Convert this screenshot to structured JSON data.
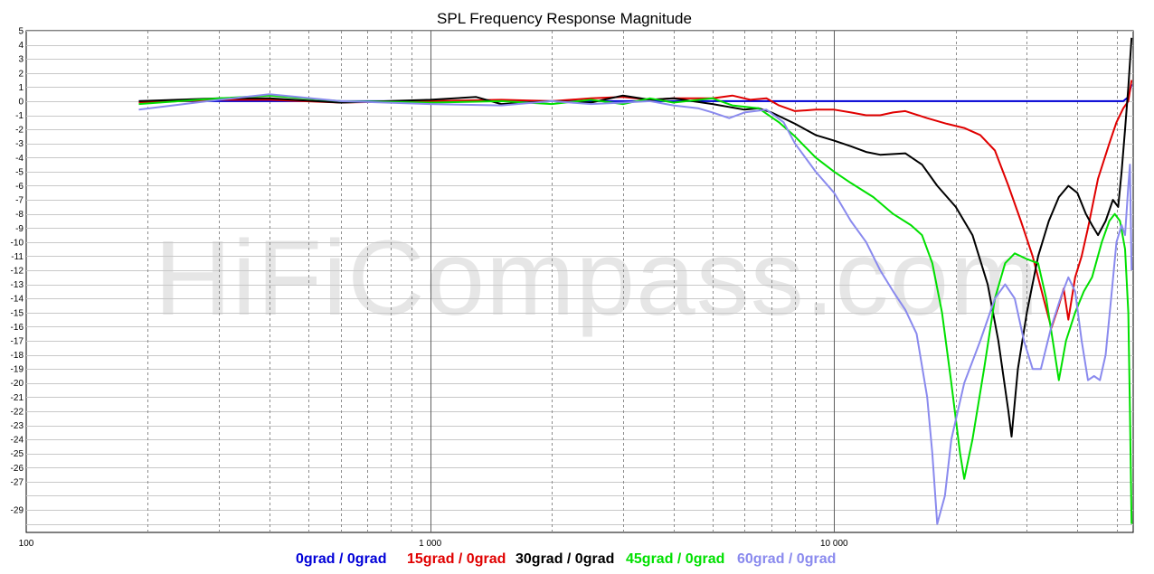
{
  "chart_data": {
    "type": "line",
    "title": "SPL Frequency Response Magnitude",
    "watermark": "HiFiCompass.com",
    "xscale": "log",
    "xlim": [
      100,
      55000
    ],
    "ylim": [
      -30.6,
      5
    ],
    "grid": true,
    "legend_position": "bottom",
    "x_tick_labels": [
      {
        "value": 100,
        "label": "100"
      },
      {
        "value": 1000,
        "label": "1 000"
      },
      {
        "value": 10000,
        "label": "10 000"
      }
    ],
    "y_tick_labels": [
      "5",
      "4",
      "3",
      "2",
      "1",
      "0",
      "-1",
      "-2",
      "-3",
      "-4",
      "-5",
      "-6",
      "-7",
      "-8",
      "-9",
      "-10",
      "-11",
      "-12",
      "-13",
      "-14",
      "-15",
      "-16",
      "-17",
      "-18",
      "-19",
      "-20",
      "-21",
      "-22",
      "-23",
      "-24",
      "-25",
      "-26",
      "-27",
      "-29"
    ],
    "series": [
      {
        "name": "0grad / 0grad",
        "color": "#0000d8",
        "points": [
          [
            190,
            0
          ],
          [
            7000,
            0
          ],
          [
            52000,
            0
          ],
          [
            53500,
            0.3
          ],
          [
            54500,
            1.2
          ]
        ]
      },
      {
        "name": "15grad / 0grad",
        "color": "#e00000",
        "points": [
          [
            190,
            -0.1
          ],
          [
            300,
            0.1
          ],
          [
            400,
            0.1
          ],
          [
            600,
            -0.1
          ],
          [
            1000,
            0.0
          ],
          [
            1500,
            0.1
          ],
          [
            2000,
            0.0
          ],
          [
            2500,
            0.2
          ],
          [
            3000,
            0.3
          ],
          [
            3500,
            0.1
          ],
          [
            4000,
            0.2
          ],
          [
            5000,
            0.2
          ],
          [
            5600,
            0.4
          ],
          [
            6200,
            0.1
          ],
          [
            6800,
            0.2
          ],
          [
            7300,
            -0.3
          ],
          [
            8000,
            -0.7
          ],
          [
            9000,
            -0.6
          ],
          [
            10000,
            -0.6
          ],
          [
            11000,
            -0.8
          ],
          [
            12000,
            -1.0
          ],
          [
            13000,
            -1.0
          ],
          [
            14000,
            -0.8
          ],
          [
            15000,
            -0.7
          ],
          [
            17000,
            -1.2
          ],
          [
            19000,
            -1.6
          ],
          [
            21000,
            -1.9
          ],
          [
            23000,
            -2.4
          ],
          [
            25000,
            -3.5
          ],
          [
            27000,
            -6.0
          ],
          [
            29000,
            -8.5
          ],
          [
            31000,
            -11.0
          ],
          [
            33000,
            -14.0
          ],
          [
            34500,
            -16.1
          ],
          [
            36000,
            -14.5
          ],
          [
            37000,
            -13.3
          ],
          [
            38000,
            -15.5
          ],
          [
            39500,
            -12.5
          ],
          [
            41000,
            -11.0
          ],
          [
            42500,
            -9.0
          ],
          [
            45000,
            -5.5
          ],
          [
            48000,
            -3.0
          ],
          [
            50000,
            -1.5
          ],
          [
            52000,
            -0.5
          ],
          [
            53500,
            0.0
          ],
          [
            54500,
            1.5
          ]
        ]
      },
      {
        "name": "30grad / 0grad",
        "color": "#000000",
        "points": [
          [
            190,
            0.0
          ],
          [
            300,
            0.2
          ],
          [
            400,
            0.2
          ],
          [
            600,
            -0.1
          ],
          [
            1000,
            0.1
          ],
          [
            1300,
            0.3
          ],
          [
            1500,
            -0.2
          ],
          [
            2000,
            0.0
          ],
          [
            2500,
            -0.1
          ],
          [
            3000,
            0.4
          ],
          [
            3500,
            0.1
          ],
          [
            4000,
            0.2
          ],
          [
            5000,
            -0.2
          ],
          [
            6000,
            -0.6
          ],
          [
            6500,
            -0.5
          ],
          [
            7000,
            -0.8
          ],
          [
            8000,
            -1.6
          ],
          [
            9000,
            -2.4
          ],
          [
            10000,
            -2.8
          ],
          [
            11000,
            -3.2
          ],
          [
            12000,
            -3.6
          ],
          [
            13000,
            -3.8
          ],
          [
            15000,
            -3.7
          ],
          [
            16500,
            -4.5
          ],
          [
            18000,
            -6.0
          ],
          [
            20000,
            -7.5
          ],
          [
            22000,
            -9.5
          ],
          [
            24000,
            -13.0
          ],
          [
            25500,
            -17.0
          ],
          [
            27000,
            -22.0
          ],
          [
            27500,
            -23.8
          ],
          [
            28500,
            -19.0
          ],
          [
            30000,
            -15.0
          ],
          [
            32000,
            -11.0
          ],
          [
            34000,
            -8.5
          ],
          [
            36000,
            -6.8
          ],
          [
            38000,
            -6.0
          ],
          [
            40000,
            -6.5
          ],
          [
            42000,
            -8.0
          ],
          [
            43500,
            -8.8
          ],
          [
            45000,
            -9.5
          ],
          [
            47000,
            -8.5
          ],
          [
            49000,
            -7.0
          ],
          [
            50500,
            -7.5
          ],
          [
            51500,
            -5.0
          ],
          [
            52500,
            -2.0
          ],
          [
            53500,
            1.0
          ],
          [
            54500,
            4.5
          ]
        ]
      },
      {
        "name": "45grad / 0grad",
        "color": "#00e000",
        "points": [
          [
            190,
            -0.2
          ],
          [
            300,
            0.2
          ],
          [
            400,
            0.4
          ],
          [
            600,
            0.0
          ],
          [
            1000,
            -0.1
          ],
          [
            1500,
            0.0
          ],
          [
            2000,
            -0.2
          ],
          [
            2500,
            0.1
          ],
          [
            3000,
            -0.2
          ],
          [
            3500,
            0.2
          ],
          [
            4000,
            -0.1
          ],
          [
            5000,
            0.2
          ],
          [
            5600,
            -0.3
          ],
          [
            6500,
            -0.5
          ],
          [
            7300,
            -1.5
          ],
          [
            8000,
            -2.5
          ],
          [
            9000,
            -4.0
          ],
          [
            10000,
            -5.0
          ],
          [
            11000,
            -5.8
          ],
          [
            12500,
            -6.8
          ],
          [
            14000,
            -8.0
          ],
          [
            15500,
            -8.8
          ],
          [
            16500,
            -9.5
          ],
          [
            17500,
            -11.5
          ],
          [
            18500,
            -15.0
          ],
          [
            19500,
            -20.0
          ],
          [
            20500,
            -25.0
          ],
          [
            21000,
            -26.8
          ],
          [
            22000,
            -24.0
          ],
          [
            23500,
            -19.0
          ],
          [
            25000,
            -14.0
          ],
          [
            26500,
            -11.5
          ],
          [
            28000,
            -10.8
          ],
          [
            30000,
            -11.2
          ],
          [
            32000,
            -11.5
          ],
          [
            33500,
            -14.0
          ],
          [
            35000,
            -17.5
          ],
          [
            36000,
            -19.8
          ],
          [
            37500,
            -17.0
          ],
          [
            39500,
            -15.0
          ],
          [
            41500,
            -13.5
          ],
          [
            43500,
            -12.5
          ],
          [
            46000,
            -10.0
          ],
          [
            48000,
            -8.5
          ],
          [
            49500,
            -8.0
          ],
          [
            51000,
            -8.5
          ],
          [
            52500,
            -10.5
          ],
          [
            53500,
            -15.0
          ],
          [
            54000,
            -22.0
          ],
          [
            54500,
            -30.0
          ]
        ]
      },
      {
        "name": "60grad / 0grad",
        "color": "#8a8aee",
        "points": [
          [
            190,
            -0.6
          ],
          [
            300,
            0.1
          ],
          [
            400,
            0.5
          ],
          [
            600,
            0.0
          ],
          [
            1000,
            -0.2
          ],
          [
            1500,
            -0.3
          ],
          [
            2000,
            0.0
          ],
          [
            2500,
            -0.2
          ],
          [
            3000,
            -0.1
          ],
          [
            3500,
            0.0
          ],
          [
            4000,
            -0.3
          ],
          [
            4600,
            -0.5
          ],
          [
            5000,
            -0.8
          ],
          [
            5500,
            -1.2
          ],
          [
            6000,
            -0.8
          ],
          [
            6800,
            -0.6
          ],
          [
            7500,
            -1.5
          ],
          [
            8000,
            -3.0
          ],
          [
            9000,
            -5.0
          ],
          [
            10000,
            -6.5
          ],
          [
            11000,
            -8.5
          ],
          [
            12000,
            -10.0
          ],
          [
            13000,
            -12.0
          ],
          [
            14000,
            -13.5
          ],
          [
            15000,
            -14.8
          ],
          [
            16000,
            -16.5
          ],
          [
            17000,
            -21.0
          ],
          [
            17500,
            -25.0
          ],
          [
            18000,
            -30.0
          ],
          [
            18800,
            -28.0
          ],
          [
            19500,
            -24.0
          ],
          [
            21000,
            -20.0
          ],
          [
            23000,
            -17.0
          ],
          [
            25000,
            -14.0
          ],
          [
            26500,
            -13.0
          ],
          [
            28000,
            -14.0
          ],
          [
            29500,
            -17.0
          ],
          [
            31000,
            -19.0
          ],
          [
            32500,
            -19.0
          ],
          [
            34500,
            -16.0
          ],
          [
            36500,
            -13.8
          ],
          [
            38000,
            -12.5
          ],
          [
            39500,
            -13.5
          ],
          [
            41000,
            -17.0
          ],
          [
            42500,
            -19.8
          ],
          [
            44000,
            -19.5
          ],
          [
            45500,
            -19.8
          ],
          [
            47000,
            -18.0
          ],
          [
            48500,
            -14.0
          ],
          [
            50000,
            -10.0
          ],
          [
            51500,
            -8.8
          ],
          [
            52500,
            -9.5
          ],
          [
            53500,
            -6.0
          ],
          [
            54000,
            -4.5
          ],
          [
            54500,
            -12.0
          ]
        ]
      }
    ]
  }
}
